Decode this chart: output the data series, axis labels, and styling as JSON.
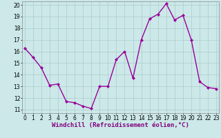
{
  "x": [
    0,
    1,
    2,
    3,
    4,
    5,
    6,
    7,
    8,
    9,
    10,
    11,
    12,
    13,
    14,
    15,
    16,
    17,
    18,
    19,
    20,
    21,
    22,
    23
  ],
  "y": [
    16.3,
    15.5,
    14.6,
    13.1,
    13.2,
    11.7,
    11.6,
    11.3,
    11.1,
    13.0,
    13.0,
    15.3,
    16.0,
    13.7,
    17.0,
    18.8,
    19.2,
    20.1,
    18.7,
    19.1,
    17.0,
    13.4,
    12.9,
    12.8
  ],
  "color": "#990099",
  "marker": "D",
  "markersize": 2.0,
  "linewidth": 1.0,
  "bg_color": "#cce8e8",
  "grid_color": "#aacccc",
  "xlabel": "Windchill (Refroidissement éolien,°C)",
  "xlabel_fontsize": 6.5,
  "ylim_min": 11,
  "ylim_max": 20,
  "xlim_min": -0.3,
  "xlim_max": 23.3,
  "yticks": [
    11,
    12,
    13,
    14,
    15,
    16,
    17,
    18,
    19,
    20
  ],
  "xticks": [
    0,
    1,
    2,
    3,
    4,
    5,
    6,
    7,
    8,
    9,
    10,
    11,
    12,
    13,
    14,
    15,
    16,
    17,
    18,
    19,
    20,
    21,
    22,
    23
  ],
  "tick_fontsize": 5.5,
  "xlabel_color": "#800080",
  "line_color": "#990099"
}
